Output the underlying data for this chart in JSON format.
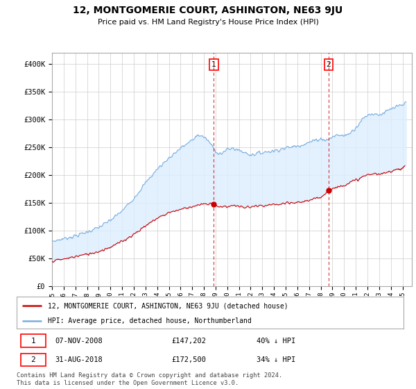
{
  "title": "12, MONTGOMERIE COURT, ASHINGTON, NE63 9JU",
  "subtitle": "Price paid vs. HM Land Registry's House Price Index (HPI)",
  "ylim": [
    0,
    420000
  ],
  "xlim_start": 1995.0,
  "xlim_end": 2025.8,
  "hpi_color": "#7aade0",
  "price_color": "#cc0000",
  "fill_color": "#ddeeff",
  "sale1_date": 2008.85,
  "sale1_price": 147202,
  "sale2_date": 2018.67,
  "sale2_price": 172500,
  "legend_house": "12, MONTGOMERIE COURT, ASHINGTON, NE63 9JU (detached house)",
  "legend_hpi": "HPI: Average price, detached house, Northumberland",
  "footnote": "Contains HM Land Registry data © Crown copyright and database right 2024.\nThis data is licensed under the Open Government Licence v3.0.",
  "background_color": "#ffffff",
  "grid_color": "#cccccc"
}
